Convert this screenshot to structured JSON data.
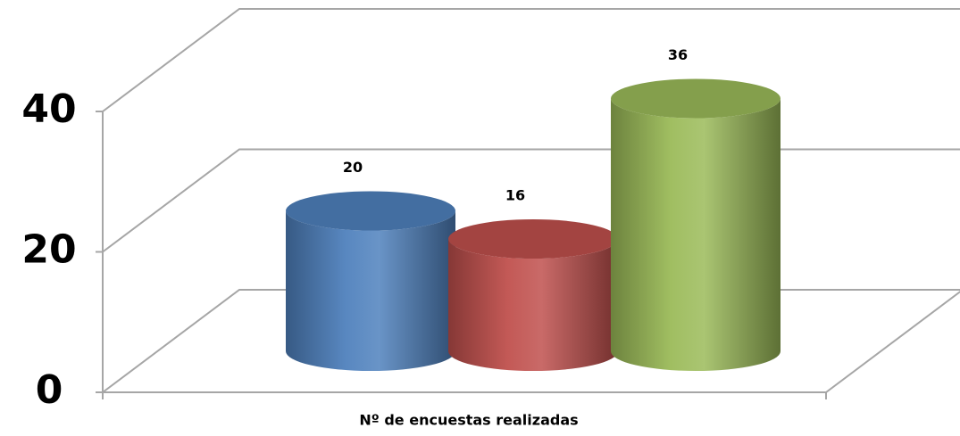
{
  "chart_data": {
    "type": "cylinder",
    "categories": [
      "Nº de encuestas realizadas"
    ],
    "series": [
      {
        "color": "#4f81bd",
        "values": [
          20
        ]
      },
      {
        "color": "#c0504d",
        "values": [
          16
        ]
      },
      {
        "color": "#9bbb59",
        "values": [
          36
        ]
      }
    ],
    "ylim": [
      0,
      40
    ],
    "yticks": [
      0,
      20,
      40
    ],
    "grid": true
  }
}
